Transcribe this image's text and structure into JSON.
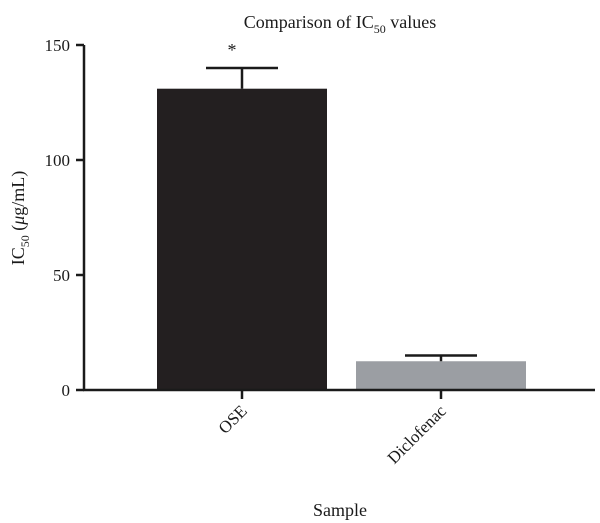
{
  "chart_data": {
    "type": "bar",
    "title": {
      "main": "Comparison of IC",
      "sub": "50",
      "suffix": " values"
    },
    "ylabel": {
      "main": "IC",
      "sub": "50",
      "suffix": " (",
      "mu": "μ",
      "unit": "g/mL)"
    },
    "xlabel": "Sample",
    "categories": [
      "OSE",
      "Diclofenac"
    ],
    "values": [
      131,
      12.5
    ],
    "errors": [
      9,
      2.5
    ],
    "bar_colors": [
      "#231f20",
      "#9b9ea3"
    ],
    "annotations": [
      "*",
      ""
    ],
    "ylim": [
      0,
      150
    ],
    "yticks": [
      0,
      50,
      100,
      150
    ],
    "grid": false,
    "legend": "none"
  }
}
